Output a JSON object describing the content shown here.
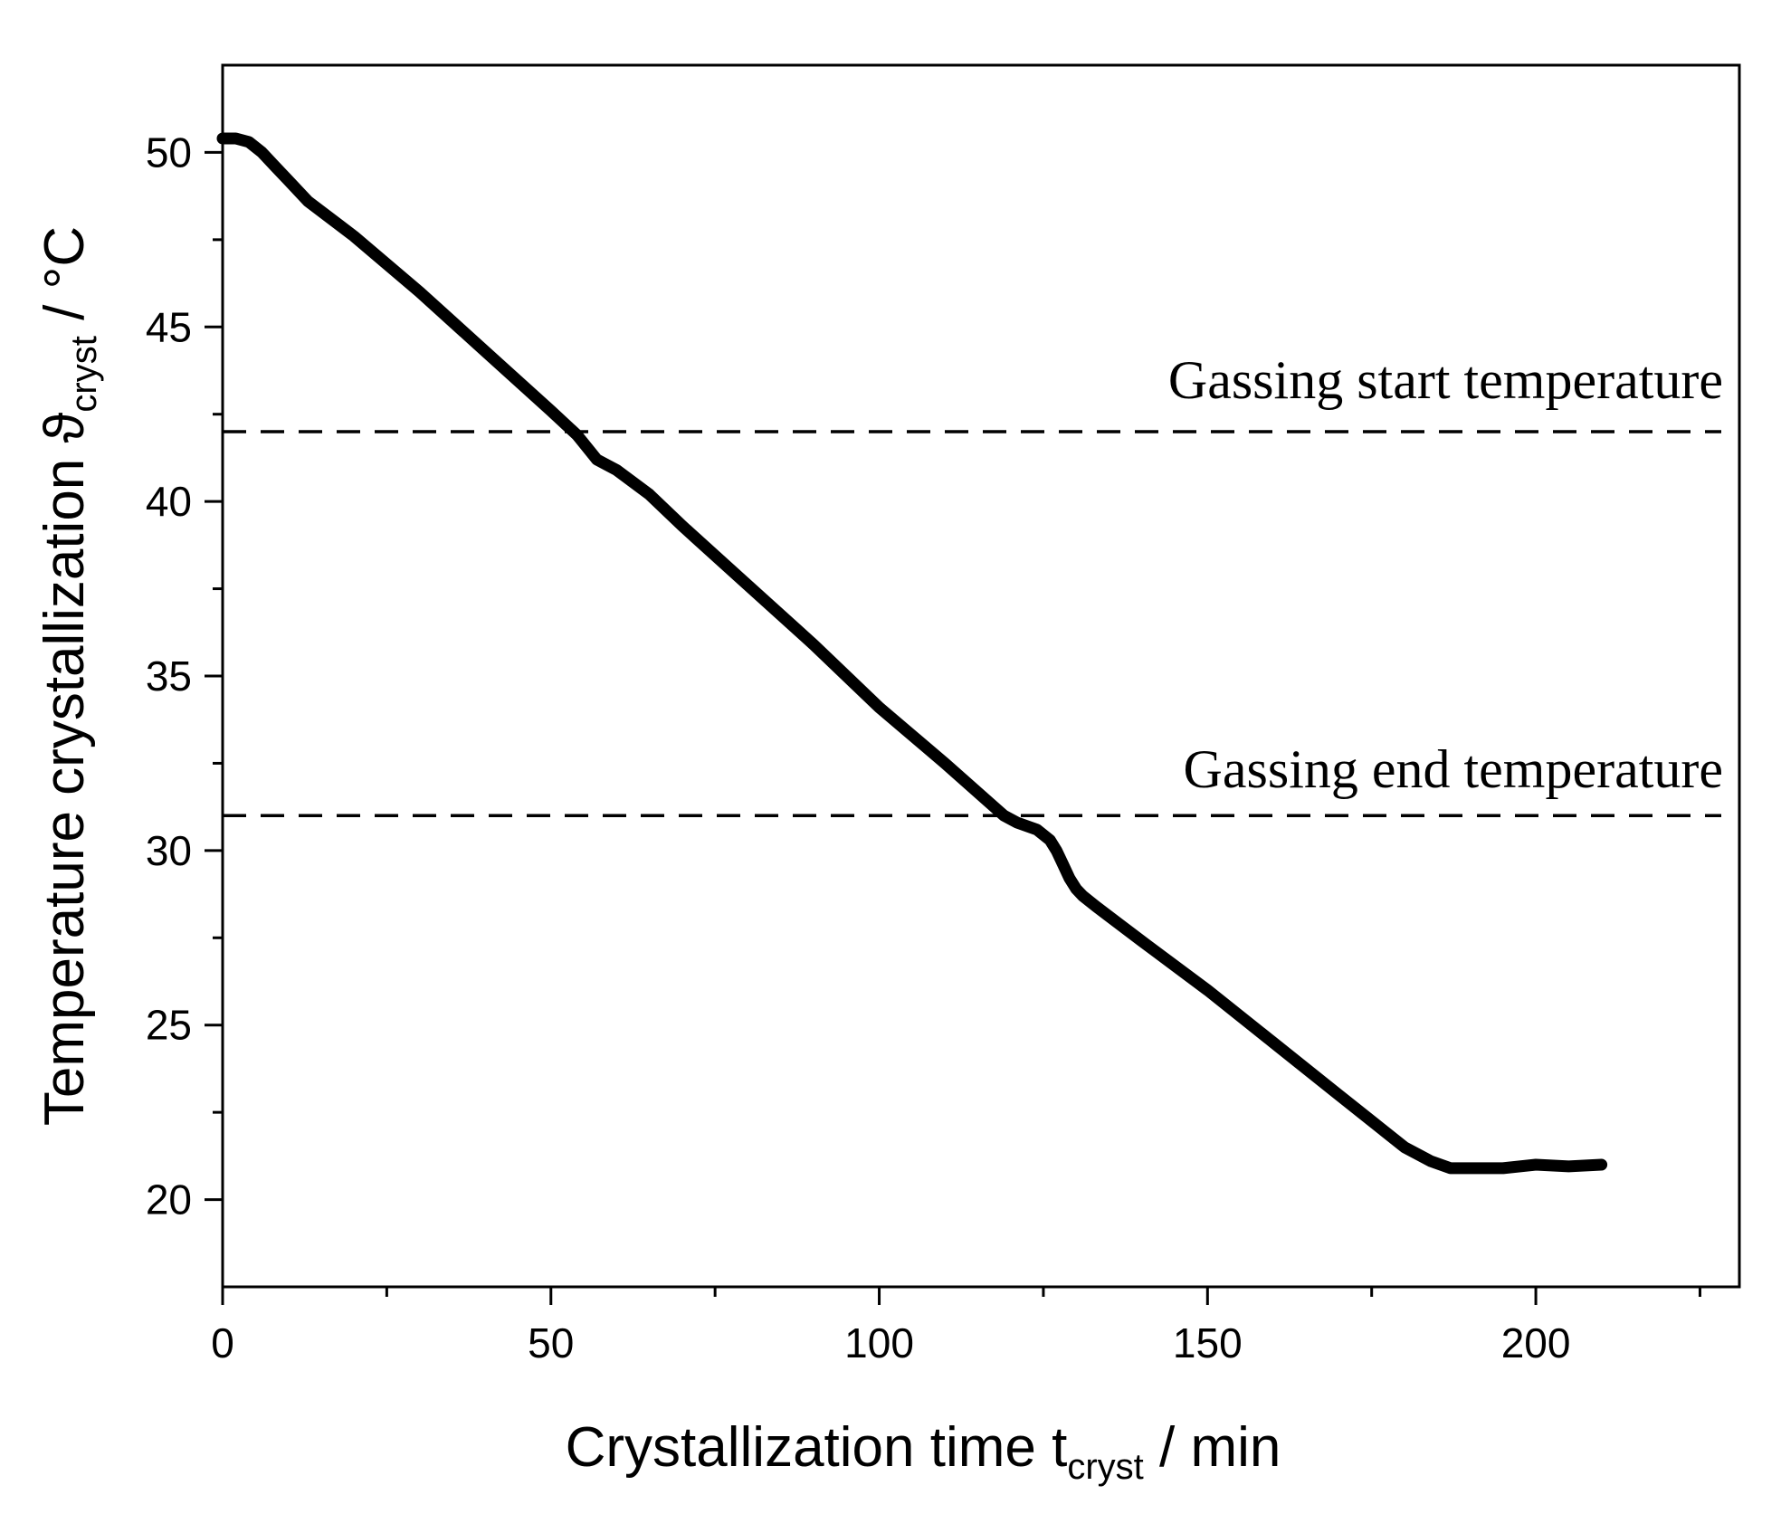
{
  "chart_data": {
    "type": "line",
    "xlabel": {
      "main": "Crystallization time t",
      "sub": "cryst",
      "unit": " / min"
    },
    "ylabel": {
      "main": "Temperature crystallization ϑ",
      "sub": "cryst",
      "unit": " / °C"
    },
    "xlim": [
      0,
      231
    ],
    "ylim": [
      17.5,
      52.5
    ],
    "x_ticks": [
      0,
      50,
      100,
      150,
      200
    ],
    "x_minor_ticks": [
      25,
      75,
      125,
      175,
      225
    ],
    "y_ticks": [
      20,
      25,
      30,
      35,
      40,
      45,
      50
    ],
    "y_minor_ticks": [
      22.5,
      27.5,
      32.5,
      37.5,
      42.5,
      47.5
    ],
    "grid": false,
    "legend": "none",
    "series": [
      {
        "color": "#000000",
        "x": [
          0,
          2,
          4,
          6,
          8,
          10,
          13,
          20,
          30,
          40,
          50,
          54,
          57,
          60,
          65,
          70,
          80,
          90,
          100,
          110,
          119,
          121,
          124,
          126,
          127,
          128,
          129,
          130,
          131,
          133,
          140,
          150,
          160,
          170,
          180,
          184,
          187,
          190,
          195,
          200,
          205,
          210
        ],
        "y": [
          50.4,
          50.4,
          50.3,
          50.0,
          49.6,
          49.2,
          48.6,
          47.6,
          46.0,
          44.3,
          42.6,
          41.9,
          41.2,
          40.9,
          40.2,
          39.3,
          37.6,
          35.9,
          34.1,
          32.5,
          31.0,
          30.8,
          30.6,
          30.3,
          30.0,
          29.6,
          29.2,
          28.9,
          28.7,
          28.4,
          27.4,
          26.0,
          24.5,
          23.0,
          21.5,
          21.1,
          20.9,
          20.9,
          20.9,
          21.0,
          20.95,
          21.0
        ]
      }
    ],
    "reference_lines": [
      {
        "y": 42,
        "label": "Gassing start temperature"
      },
      {
        "y": 31,
        "label": "Gassing end temperature"
      }
    ]
  }
}
